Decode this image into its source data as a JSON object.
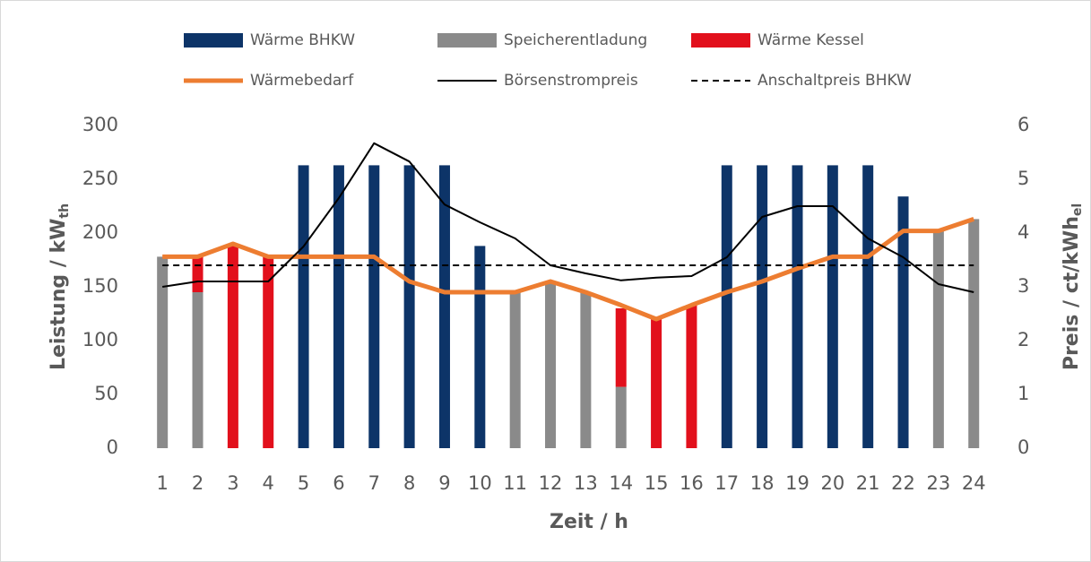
{
  "chart_data": {
    "type": "bar",
    "categories": [
      "1",
      "2",
      "3",
      "4",
      "5",
      "6",
      "7",
      "8",
      "9",
      "10",
      "11",
      "12",
      "13",
      "14",
      "15",
      "16",
      "17",
      "18",
      "19",
      "20",
      "21",
      "22",
      "23",
      "24"
    ],
    "series": [
      {
        "name": "Wärme BHKW",
        "type": "bar",
        "color": "#0d3468",
        "values": [
          0,
          0,
          0,
          0,
          263,
          263,
          263,
          263,
          263,
          188,
          0,
          0,
          0,
          0,
          0,
          0,
          263,
          263,
          263,
          263,
          263,
          234,
          0,
          0
        ]
      },
      {
        "name": "Speicherentladung",
        "type": "bar",
        "color": "#8a8a8a",
        "values": [
          178,
          145,
          0,
          0,
          0,
          0,
          0,
          0,
          0,
          0,
          145,
          155,
          145,
          57,
          0,
          0,
          0,
          0,
          0,
          0,
          0,
          0,
          203,
          213
        ]
      },
      {
        "name": "Wärme Kessel",
        "type": "bar",
        "color": "#e2101c",
        "values": [
          0,
          33,
          190,
          178,
          0,
          0,
          0,
          0,
          0,
          0,
          0,
          0,
          0,
          73,
          120,
          133,
          0,
          0,
          0,
          0,
          0,
          0,
          0,
          0
        ]
      },
      {
        "name": "Wärmebedarf",
        "type": "line",
        "color": "#ed7d31",
        "width": 5,
        "values": [
          178,
          178,
          190,
          178,
          178,
          178,
          178,
          155,
          145,
          145,
          145,
          155,
          145,
          133,
          120,
          133,
          145,
          155,
          167,
          178,
          178,
          202,
          202,
          213
        ]
      },
      {
        "name": "Börsenstrompreis",
        "type": "line",
        "color": "#000000",
        "width": 2,
        "axis": "y2",
        "values": [
          3.0,
          3.1,
          3.1,
          3.1,
          3.75,
          4.65,
          5.67,
          5.33,
          4.53,
          4.2,
          3.9,
          3.4,
          3.25,
          3.12,
          3.17,
          3.2,
          3.55,
          4.3,
          4.5,
          4.5,
          3.9,
          3.55,
          3.05,
          2.9
        ]
      },
      {
        "name": "Anschaltpreis BHKW",
        "type": "line",
        "color": "#000000",
        "width": 2,
        "dashed": true,
        "axis": "y2",
        "values": [
          3.4,
          3.4,
          3.4,
          3.4,
          3.4,
          3.4,
          3.4,
          3.4,
          3.4,
          3.4,
          3.4,
          3.4,
          3.4,
          3.4,
          3.4,
          3.4,
          3.4,
          3.4,
          3.4,
          3.4,
          3.4,
          3.4,
          3.4,
          3.4
        ]
      }
    ],
    "stacked": true,
    "x_label": "Zeit / h",
    "y_label": "Leistung / kW",
    "y_label_sub": "th",
    "y2_label": "Preis / ct/kWh",
    "y2_label_sub": "el",
    "ylim": [
      0,
      300
    ],
    "yticks": [
      0,
      50,
      100,
      150,
      200,
      250,
      300
    ],
    "y2lim": [
      0,
      6
    ],
    "y2ticks": [
      0,
      1,
      2,
      3,
      4,
      5,
      6
    ],
    "grid": false
  }
}
